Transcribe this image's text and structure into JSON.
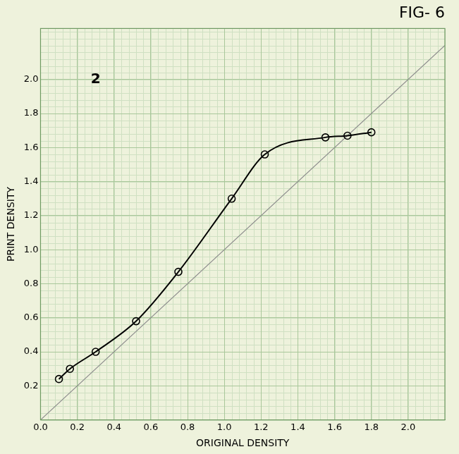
{
  "chart_data": {
    "type": "line",
    "title": "FIG- 6",
    "annotations": [
      {
        "text": "2",
        "x": 0.3,
        "y": 2.0
      }
    ],
    "x_label": "ORIGINAL DENSITY",
    "y_label": "PRINT DENSITY",
    "series": [
      {
        "color": "#000000",
        "marker": "circle",
        "line_style": "solid",
        "x": [
          0.1,
          0.16,
          0.3,
          0.52,
          0.75,
          1.04,
          1.22,
          1.55,
          1.67,
          1.8
        ],
        "values": [
          0.24,
          0.3,
          0.4,
          0.58,
          0.87,
          1.3,
          1.56,
          1.66,
          1.67,
          1.69
        ]
      },
      {
        "color": "#8c8c8c",
        "marker": "none",
        "line_style": "solid",
        "x": [
          0.0,
          2.2
        ],
        "values": [
          0.0,
          2.2
        ]
      }
    ],
    "xlim": [
      0,
      2.2
    ],
    "ylim": [
      0,
      2.3
    ],
    "xticks": [
      {
        "value": 0,
        "label": "0.0"
      },
      {
        "value": 0.2,
        "label": "0.2"
      },
      {
        "value": 0.4,
        "label": "0.4"
      },
      {
        "value": 0.6,
        "label": "0.6"
      },
      {
        "value": 0.8,
        "label": "0.8"
      },
      {
        "value": 1.0,
        "label": "1.0"
      },
      {
        "value": 1.2,
        "label": "1.2"
      },
      {
        "value": 1.4,
        "label": "1.4"
      },
      {
        "value": 1.6,
        "label": "1.6"
      },
      {
        "value": 1.8,
        "label": "1.8"
      },
      {
        "value": 2.0,
        "label": "2.0"
      }
    ],
    "yticks": [
      {
        "value": 0.2,
        "label": "0.2"
      },
      {
        "value": 0.4,
        "label": "0.4"
      },
      {
        "value": 0.6,
        "label": "0.6"
      },
      {
        "value": 0.8,
        "label": "0.8"
      },
      {
        "value": 1.0,
        "label": "1.0"
      },
      {
        "value": 1.2,
        "label": "1.2"
      },
      {
        "value": 1.4,
        "label": "1.4"
      },
      {
        "value": 1.6,
        "label": "1.6"
      },
      {
        "value": 1.8,
        "label": "1.8"
      },
      {
        "value": 2.0,
        "label": "2.0"
      }
    ],
    "grid": true
  }
}
